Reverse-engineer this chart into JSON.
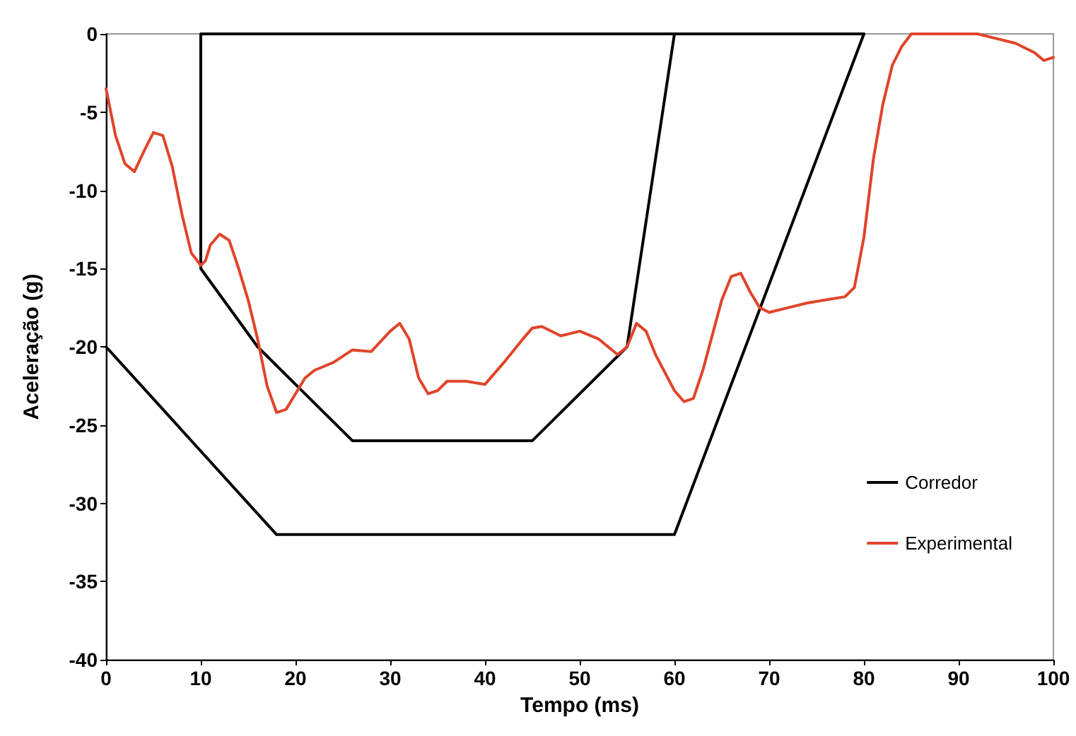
{
  "chart_data": {
    "type": "line",
    "xlabel": "Tempo (ms)",
    "ylabel": "Aceleração (g)",
    "xlim": [
      0,
      100
    ],
    "xticks": [
      0,
      10,
      20,
      30,
      40,
      50,
      60,
      70,
      80,
      90,
      100
    ],
    "ylim": [
      -40,
      0
    ],
    "yticks": [
      -40,
      -35,
      -30,
      -25,
      -20,
      -15,
      -10,
      -5,
      0
    ],
    "grid": false,
    "legend": "right",
    "marker": "none",
    "line_style": "solid",
    "series": [
      {
        "name": "Corredor",
        "color": "#000000",
        "x": [
          80,
          10,
          10,
          16,
          26,
          45,
          55,
          60
        ],
        "values": [
          0,
          0,
          -15,
          -20,
          -26,
          -26,
          -20,
          0
        ]
      },
      {
        "color": "#000000",
        "x": [
          0,
          18,
          60,
          80
        ],
        "values": [
          -20,
          -32,
          -32,
          0
        ]
      },
      {
        "name": "Experimental",
        "color": "#e0442a",
        "x": [
          0,
          1,
          2,
          3,
          4,
          5,
          6,
          7,
          8,
          9,
          10,
          10.5,
          11,
          12,
          13,
          14,
          15,
          16,
          17,
          18,
          19,
          20,
          21,
          22,
          24,
          26,
          28,
          30,
          31,
          32,
          33,
          34,
          35,
          36,
          38,
          40,
          42,
          44,
          45,
          46,
          48,
          50,
          52,
          54,
          55,
          56,
          57,
          58,
          60,
          61,
          62,
          63,
          65,
          66,
          67,
          68,
          69,
          70,
          72,
          74,
          76,
          78,
          79,
          80,
          81,
          82,
          83,
          84,
          85,
          86,
          88,
          90,
          92,
          94,
          96,
          98,
          99,
          100
        ],
        "values": [
          -3.5,
          -6.5,
          -8.3,
          -8.8,
          -7.5,
          -6.3,
          -6.5,
          -8.5,
          -11.5,
          -14,
          -14.8,
          -14.5,
          -13.5,
          -12.8,
          -13.2,
          -15,
          -17,
          -19.5,
          -22.5,
          -24.2,
          -24,
          -23,
          -22,
          -21.5,
          -21,
          -20.2,
          -20.3,
          -19,
          -18.5,
          -19.5,
          -22,
          -23,
          -22.8,
          -22.2,
          -22.2,
          -22.4,
          -21,
          -19.5,
          -18.8,
          -18.7,
          -19.3,
          -19,
          -19.5,
          -20.5,
          -20,
          -18.5,
          -19,
          -20.5,
          -22.8,
          -23.5,
          -23.3,
          -21.5,
          -17,
          -15.5,
          -15.3,
          -16.5,
          -17.5,
          -17.8,
          -17.5,
          -17.2,
          -17,
          -16.8,
          -16.2,
          -13,
          -8,
          -4.5,
          -2,
          -0.8,
          0,
          0,
          0,
          0,
          0,
          -0.3,
          -0.6,
          -1.2,
          -1.7,
          -1.5
        ]
      }
    ]
  }
}
